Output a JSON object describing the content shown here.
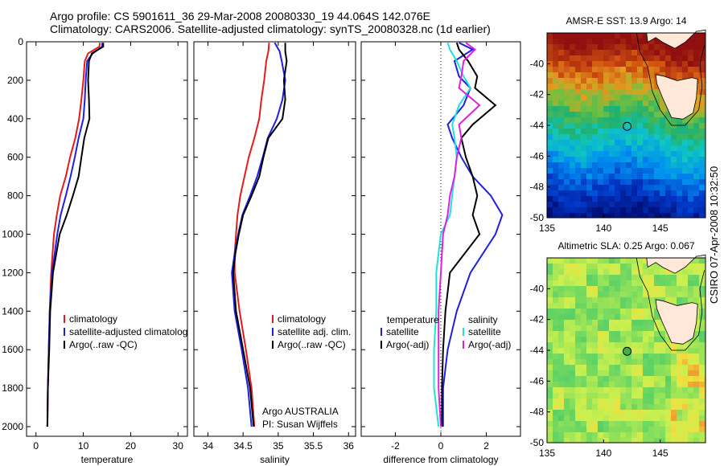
{
  "header": {
    "line1": "Argo profile: CS 5901611_36 29-Mar-2008 20080330_19 44.064S 142.076E",
    "line2": "Climatology: CARS2006. Satellite-adjusted climatology: synTS_20080328.nc (1d earlier)"
  },
  "side_label": "CSIRO 07-Apr-2008 10:32:50",
  "colors": {
    "red": "#e41a1c",
    "blue": "#1f1fe0",
    "black": "#000000",
    "magenta": "#e020e0",
    "cyan": "#20e0e0"
  },
  "chart_data": [
    {
      "type": "line",
      "xlabel": "temperature",
      "ylabel": "",
      "xlim": [
        -2,
        32
      ],
      "ylim": [
        2050,
        0
      ],
      "xticks": [
        0,
        10,
        20,
        30
      ],
      "yticks": [
        0,
        200,
        400,
        600,
        800,
        1000,
        1200,
        1400,
        1600,
        1800,
        2000
      ],
      "legend": [
        "climatology",
        "satellite-adjusted climatology",
        "Argo(..raw -QC)"
      ],
      "series": [
        {
          "name": "climatology",
          "color": "red",
          "x": [
            13.5,
            13.4,
            11.0,
            10.3,
            10.0,
            9.6,
            9.1,
            8.3,
            7.2,
            6.3,
            5.1,
            4.4,
            3.8,
            3.2,
            2.9,
            2.7,
            2.5,
            2.4
          ],
          "y": [
            5,
            25,
            60,
            100,
            200,
            300,
            400,
            500,
            600,
            700,
            800,
            900,
            1000,
            1200,
            1400,
            1600,
            1800,
            2000
          ]
        },
        {
          "name": "satellite-adjusted climatology",
          "color": "blue",
          "x": [
            14.0,
            14.0,
            12.0,
            10.8,
            10.5,
            10.3,
            10.0,
            9.0,
            8.2,
            7.3,
            6.3,
            5.2,
            4.5,
            3.4,
            2.9,
            2.7,
            2.5,
            2.4
          ],
          "y": [
            5,
            25,
            60,
            100,
            200,
            300,
            400,
            500,
            600,
            700,
            800,
            900,
            1000,
            1200,
            1400,
            1600,
            1800,
            2000
          ]
        },
        {
          "name": "Argo(..raw -QC)",
          "color": "black",
          "x": [
            14.2,
            14.2,
            11.8,
            11.2,
            11.0,
            11.2,
            11.3,
            10.2,
            9.6,
            9.0,
            7.8,
            6.5,
            5.0,
            3.6,
            3.0,
            2.8,
            2.5,
            2.4
          ],
          "y": [
            5,
            25,
            60,
            100,
            200,
            300,
            400,
            500,
            600,
            700,
            800,
            900,
            1000,
            1200,
            1400,
            1600,
            1800,
            2000
          ]
        }
      ]
    },
    {
      "type": "line",
      "xlabel": "salinity",
      "xlim": [
        33.8,
        36.1
      ],
      "ylim": [
        2050,
        0
      ],
      "xticks": [
        34,
        34.5,
        35,
        35.5,
        36
      ],
      "legend": [
        "climatology",
        "satellite adj. clim.",
        "Argo(..raw -QC)"
      ],
      "annotation": [
        "Argo AUSTRALIA",
        "PI: Susan Wijffels"
      ],
      "series": [
        {
          "name": "climatology",
          "color": "red",
          "x": [
            34.87,
            34.86,
            34.83,
            34.8,
            34.76,
            34.73,
            34.66,
            34.58,
            34.52,
            34.46,
            34.42,
            34.4,
            34.38,
            34.38,
            34.45,
            34.54,
            34.62,
            34.66
          ],
          "y": [
            5,
            50,
            100,
            200,
            300,
            400,
            500,
            600,
            700,
            800,
            900,
            1000,
            1100,
            1200,
            1400,
            1600,
            1800,
            2000
          ]
        },
        {
          "name": "satellite adj. clim.",
          "color": "blue",
          "x": [
            34.95,
            35.02,
            35.05,
            35.1,
            35.06,
            34.98,
            34.85,
            34.78,
            34.7,
            34.6,
            34.49,
            34.43,
            34.38,
            34.34,
            34.38,
            34.48,
            34.57,
            34.62
          ],
          "y": [
            5,
            50,
            100,
            200,
            300,
            400,
            500,
            600,
            700,
            800,
            900,
            1000,
            1100,
            1200,
            1400,
            1600,
            1800,
            2000
          ]
        },
        {
          "name": "Argo(..raw -QC)",
          "color": "black",
          "x": [
            35.1,
            35.1,
            35.12,
            35.08,
            35.1,
            35.06,
            34.86,
            34.79,
            34.73,
            34.62,
            34.5,
            34.44,
            34.39,
            34.36,
            34.4,
            34.5,
            34.6,
            34.65
          ],
          "y": [
            5,
            50,
            100,
            200,
            300,
            400,
            500,
            600,
            700,
            800,
            900,
            1000,
            1100,
            1200,
            1400,
            1600,
            1800,
            2000
          ]
        }
      ]
    },
    {
      "type": "line",
      "xlabel": "difference from climatology",
      "xlim": [
        -3.5,
        3.5
      ],
      "ylim": [
        2050,
        0
      ],
      "xticks": [
        -2,
        0,
        2
      ],
      "legend_left_title": "temperature",
      "legend_right_title": "salinity",
      "legend": [
        "satellite",
        "Argo(-adj)",
        "satellite",
        "Argo(-adj)"
      ],
      "series": [
        {
          "name": "temperature satellite",
          "color": "blue",
          "x": [
            0.8,
            1.4,
            0.6,
            0.8,
            1.3,
            1.0,
            0.3,
            0.5,
            0.9,
            1.4,
            2.2,
            2.7,
            2.4,
            1.3,
            0.7,
            0.3,
            0.1,
            0.1
          ],
          "y": [
            5,
            40,
            100,
            180,
            240,
            330,
            430,
            500,
            600,
            700,
            800,
            900,
            1000,
            1200,
            1400,
            1600,
            1800,
            2000
          ]
        },
        {
          "name": "temperature Argo(-adj)",
          "color": "black",
          "x": [
            0.7,
            0.8,
            1.2,
            1.6,
            1.5,
            2.4,
            1.4,
            0.9,
            1.1,
            1.4,
            1.6,
            1.4,
            1.7,
            0.4,
            0.2,
            0.1,
            0.05,
            0.05
          ],
          "y": [
            5,
            40,
            100,
            180,
            240,
            330,
            430,
            500,
            600,
            700,
            800,
            900,
            1000,
            1200,
            1400,
            1600,
            1800,
            2000
          ]
        },
        {
          "name": "salinity satellite",
          "color": "cyan",
          "x": [
            0.3,
            0.4,
            0.7,
            1.0,
            1.3,
            0.8,
            0.5,
            0.6,
            0.7,
            0.6,
            0.5,
            0.4,
            0.0,
            -0.2,
            -0.2,
            -0.3,
            -0.3,
            -0.1
          ],
          "y": [
            5,
            40,
            100,
            180,
            240,
            330,
            430,
            500,
            600,
            700,
            800,
            900,
            1000,
            1200,
            1400,
            1600,
            1800,
            2000
          ]
        },
        {
          "name": "salinity Argo(-adj)",
          "color": "magenta",
          "x": [
            1.1,
            1.5,
            1.0,
            0.9,
            0.8,
            1.7,
            0.8,
            0.9,
            0.7,
            0.6,
            0.4,
            0.3,
            0.1,
            0.0,
            -0.1,
            -0.1,
            -0.1,
            0.0
          ],
          "y": [
            5,
            40,
            100,
            180,
            240,
            330,
            430,
            500,
            600,
            700,
            800,
            900,
            1000,
            1200,
            1400,
            1600,
            1800,
            2000
          ]
        }
      ]
    },
    {
      "type": "heatmap",
      "title": "AMSR-E SST: 13.9 Argo: 14",
      "xlim": [
        135,
        149
      ],
      "ylim": [
        -50,
        -38
      ],
      "xticks": [
        135,
        140,
        145
      ],
      "yticks": [
        -40,
        -42,
        -44,
        -46,
        -48,
        -50
      ],
      "marker": {
        "lon": 142.076,
        "lat": -44.064
      }
    },
    {
      "type": "heatmap",
      "title": "Altimetric SLA: 0.25 Argo: 0.067",
      "xlim": [
        135,
        149
      ],
      "ylim": [
        -50,
        -38
      ],
      "xticks": [
        135,
        140,
        145
      ],
      "yticks": [
        -40,
        -42,
        -44,
        -46,
        -48,
        -50
      ],
      "marker": {
        "lon": 142.076,
        "lat": -44.064
      }
    }
  ]
}
